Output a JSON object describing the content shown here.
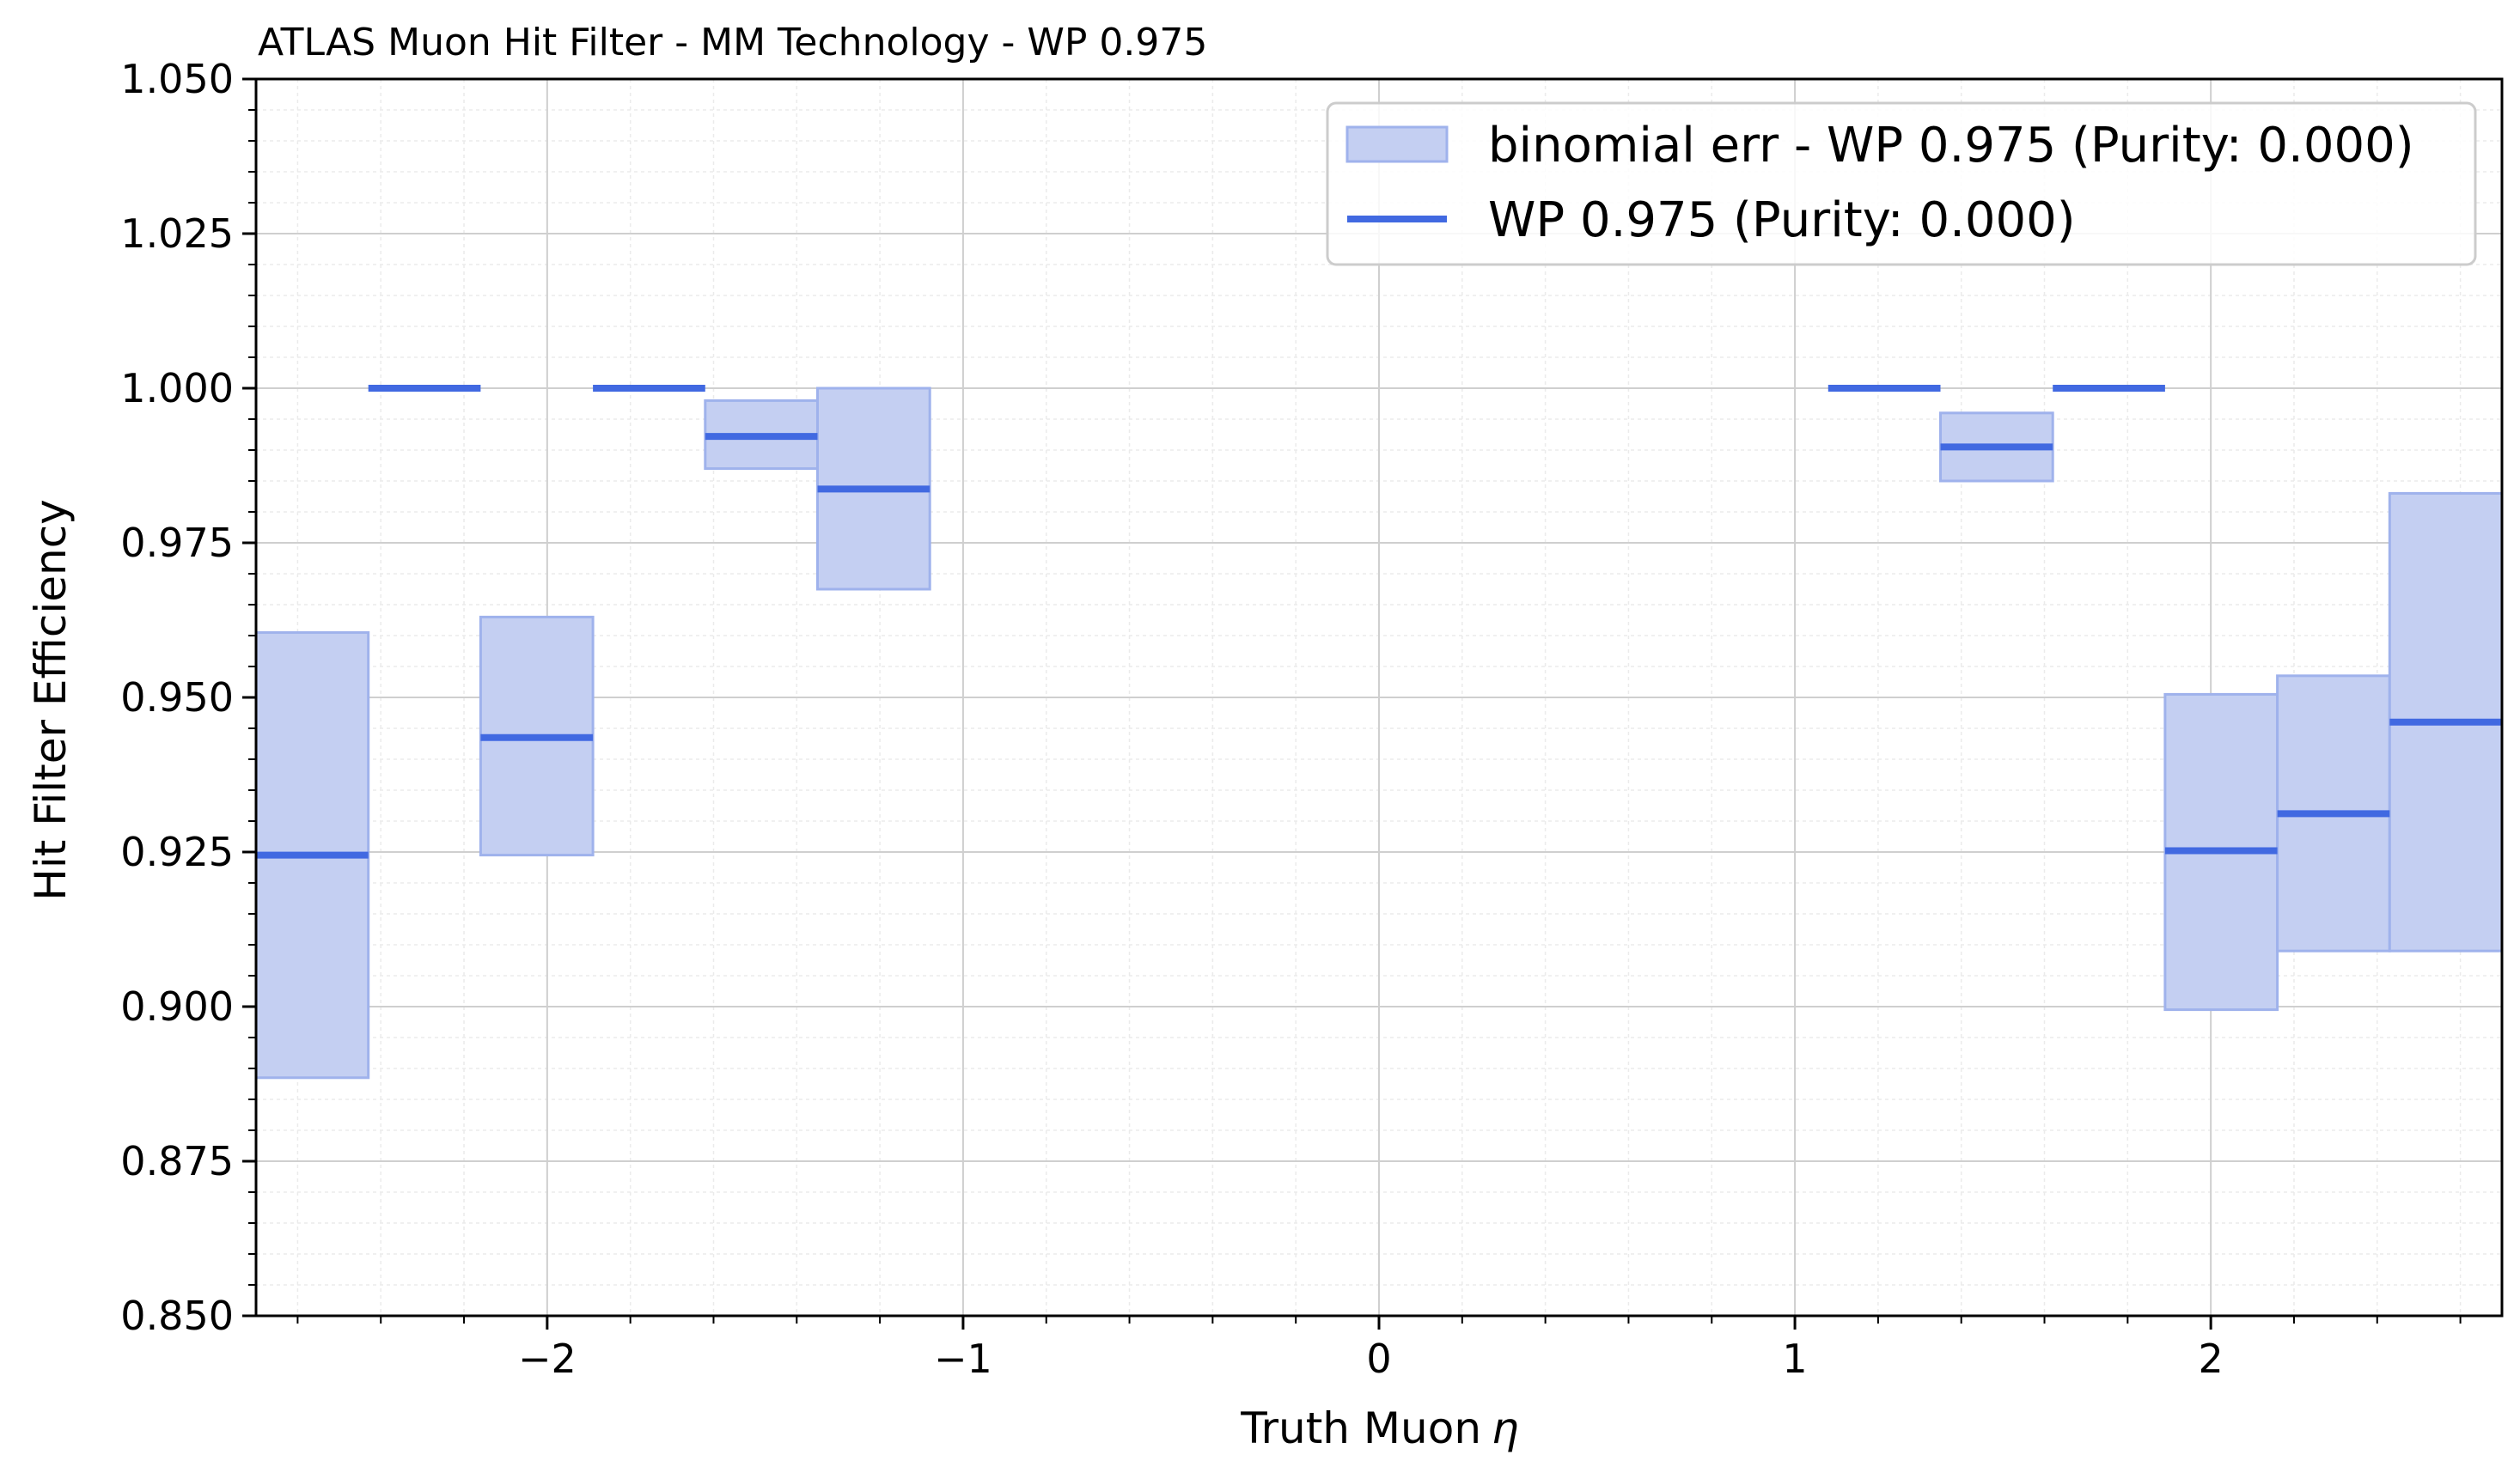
{
  "chart_data": {
    "type": "bar",
    "title": "ATLAS Muon Hit Filter - MM Technology - WP 0.975",
    "xlabel": "Truth Muon",
    "xlabel_symbol": "η",
    "ylabel": "Hit Filter Efficiency",
    "xlim": [
      -2.7,
      2.7
    ],
    "ylim": [
      0.85,
      1.05
    ],
    "xticks": [
      -2,
      -1,
      0,
      1,
      2
    ],
    "xtick_labels": [
      "−2",
      "−1",
      "0",
      "1",
      "2"
    ],
    "yticks": [
      0.85,
      0.875,
      0.9,
      0.925,
      0.95,
      0.975,
      1.0,
      1.025,
      1.05
    ],
    "ytick_labels": [
      "0.850",
      "0.875",
      "0.900",
      "0.925",
      "0.950",
      "0.975",
      "1.000",
      "1.025",
      "1.050"
    ],
    "grid": true,
    "minor_grid": true,
    "legend_position": "top-right",
    "colors": {
      "line": "#4169e1",
      "band_fill": "#c4cff2",
      "band_edge": "#9fb2ec"
    },
    "series": [
      {
        "name": "binomial err - WP 0.975 (Purity: 0.000)",
        "kind": "error_band",
        "bins": [
          {
            "x0": -2.7,
            "x1": -2.43,
            "lo": 0.8885,
            "hi": 0.9605
          },
          {
            "x0": -2.16,
            "x1": -1.89,
            "lo": 0.9245,
            "hi": 0.963
          },
          {
            "x0": -1.62,
            "x1": -1.35,
            "lo": 0.987,
            "hi": 0.998
          },
          {
            "x0": -1.35,
            "x1": -1.08,
            "lo": 0.9675,
            "hi": 1.0
          },
          {
            "x0": 1.35,
            "x1": 1.62,
            "lo": 0.985,
            "hi": 0.996
          },
          {
            "x0": 1.89,
            "x1": 2.16,
            "lo": 0.8995,
            "hi": 0.9505
          },
          {
            "x0": 2.16,
            "x1": 2.43,
            "lo": 0.909,
            "hi": 0.9535
          },
          {
            "x0": 2.43,
            "x1": 2.7,
            "lo": 0.909,
            "hi": 0.983
          }
        ]
      },
      {
        "name": "WP 0.975 (Purity: 0.000)",
        "kind": "step",
        "bins": [
          {
            "x0": -2.7,
            "x1": -2.43,
            "y": 0.9245
          },
          {
            "x0": -2.43,
            "x1": -2.16,
            "y": 1.0
          },
          {
            "x0": -2.16,
            "x1": -1.89,
            "y": 0.9435
          },
          {
            "x0": -1.89,
            "x1": -1.62,
            "y": 1.0
          },
          {
            "x0": -1.62,
            "x1": -1.35,
            "y": 0.9922
          },
          {
            "x0": -1.35,
            "x1": -1.08,
            "y": 0.9837
          },
          {
            "x0": 1.08,
            "x1": 1.35,
            "y": 1.0
          },
          {
            "x0": 1.35,
            "x1": 1.62,
            "y": 0.9905
          },
          {
            "x0": 1.62,
            "x1": 1.89,
            "y": 1.0
          },
          {
            "x0": 1.89,
            "x1": 2.16,
            "y": 0.9252
          },
          {
            "x0": 2.16,
            "x1": 2.43,
            "y": 0.9312
          },
          {
            "x0": 2.43,
            "x1": 2.7,
            "y": 0.946
          }
        ]
      }
    ]
  }
}
